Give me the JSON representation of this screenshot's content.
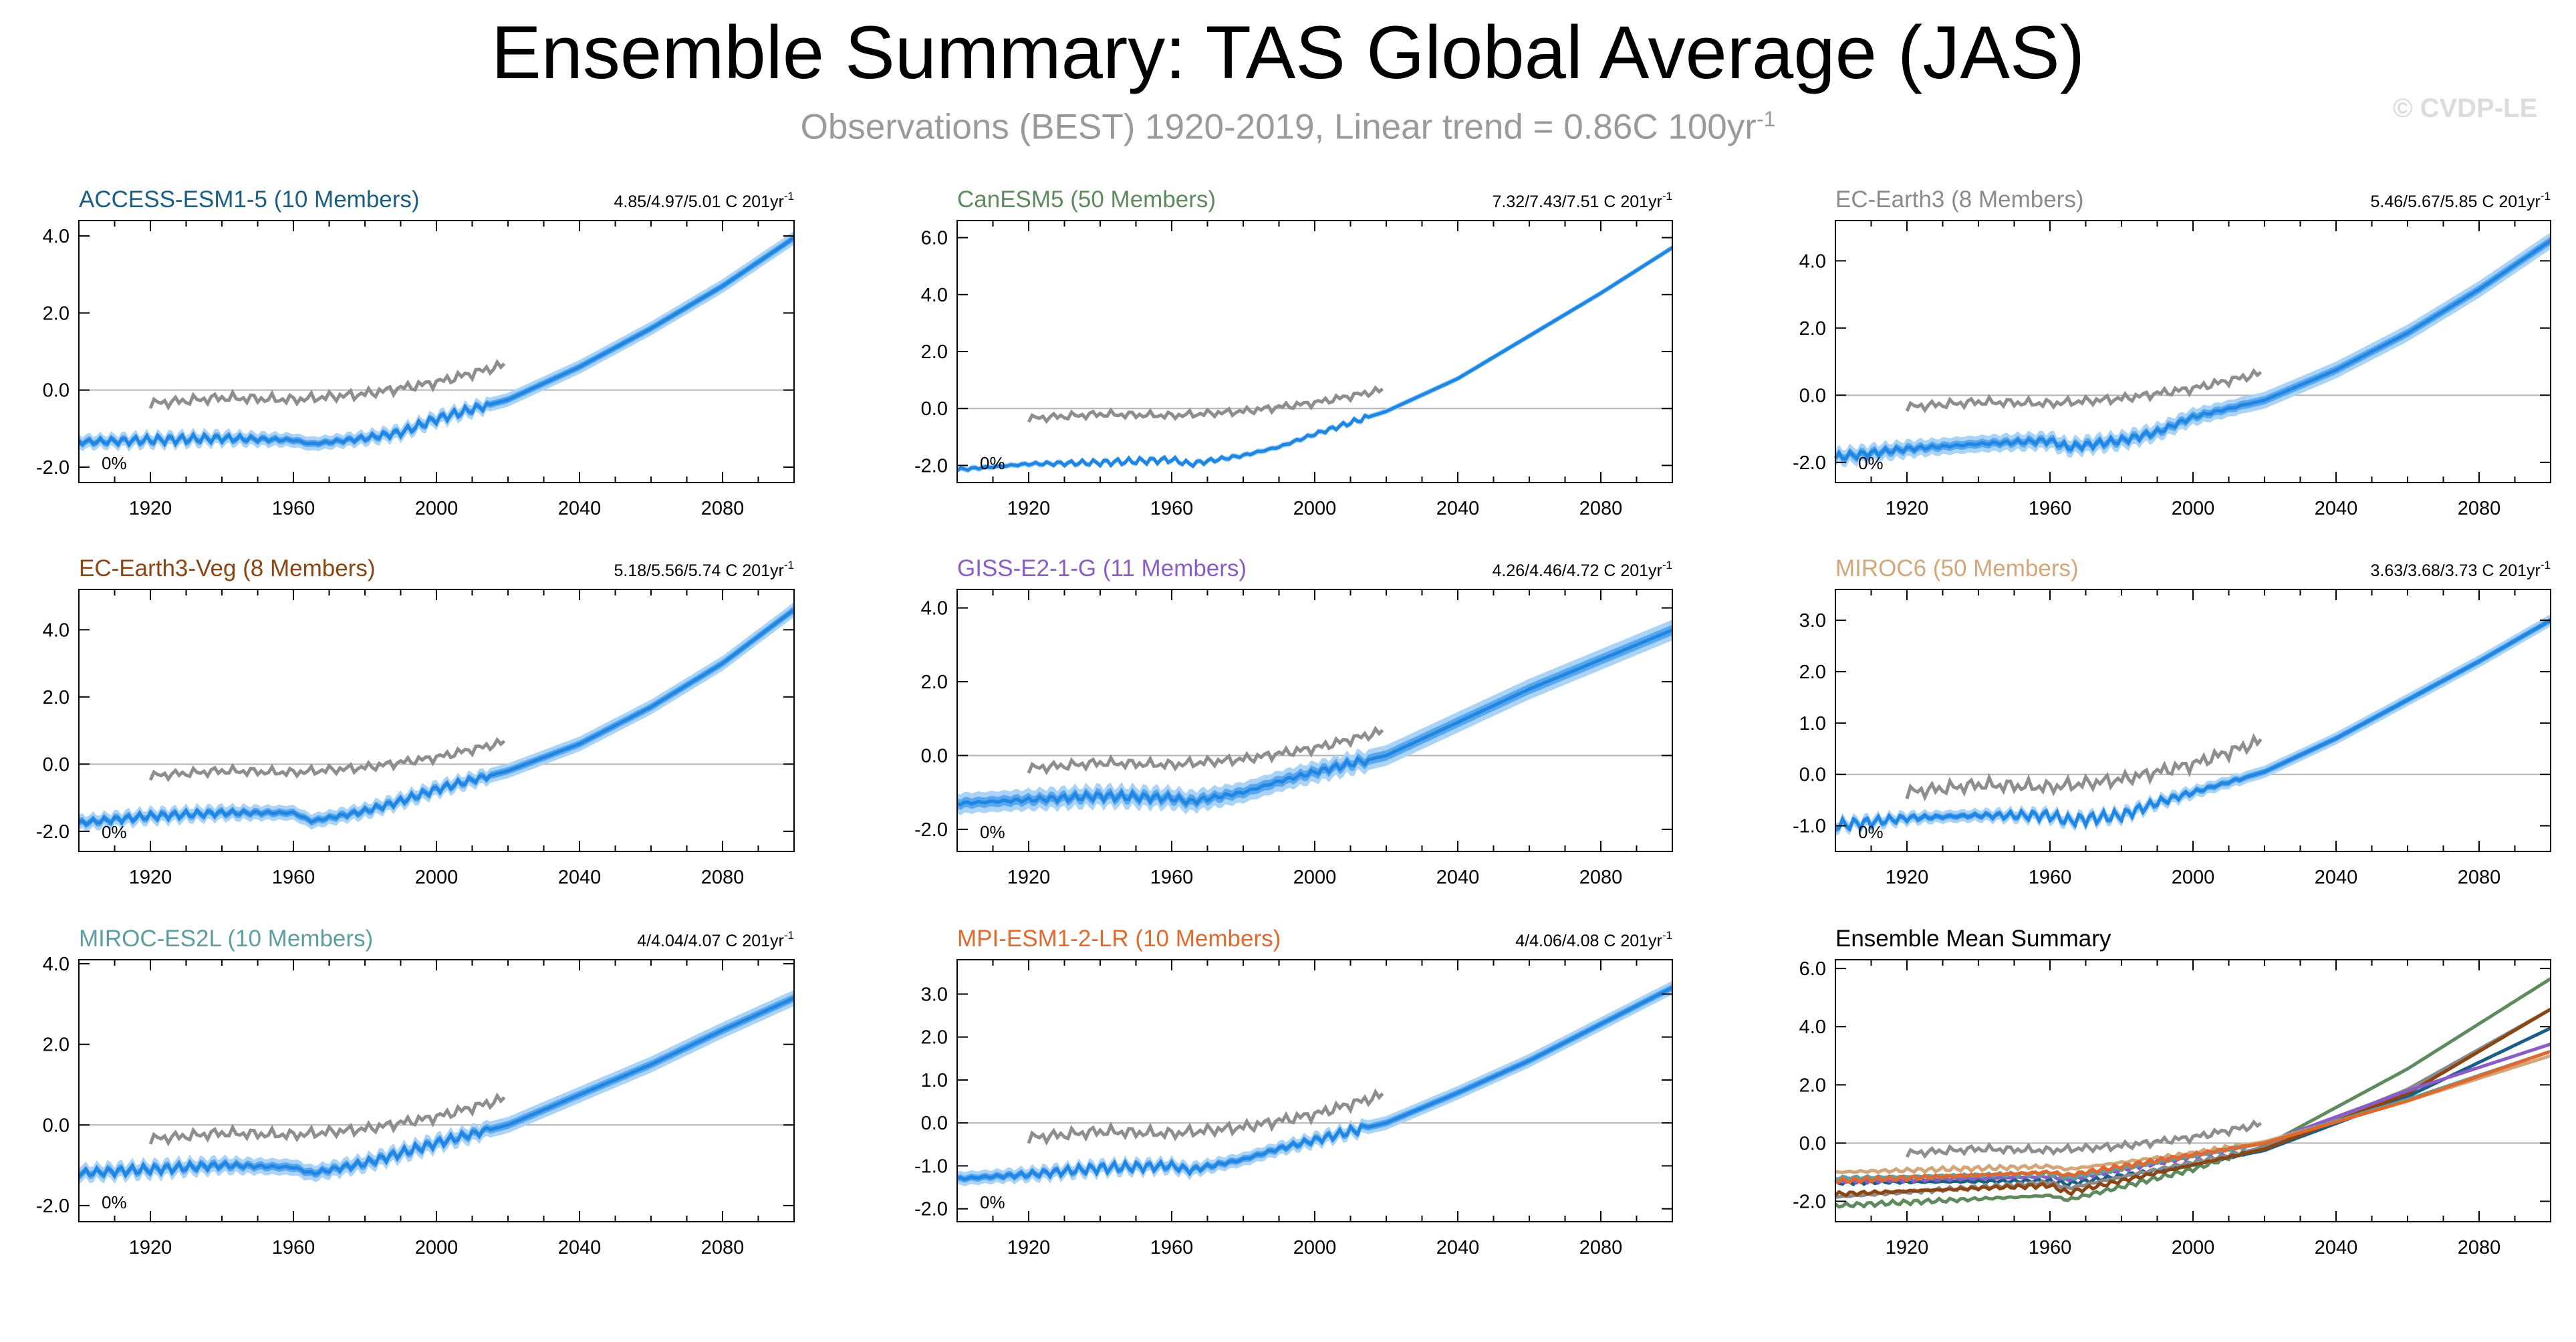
{
  "figure": {
    "title": "Ensemble Summary: TAS Global Average (JAS)",
    "subtitle_main": "Observations (BEST) 1920-2019, Linear trend = 0.86C 100yr",
    "subtitle_sup": "-1",
    "copyright": "© CVDP-LE"
  },
  "colors": {
    "ensemble_band_outer": "#a9d3f7",
    "ensemble_band_inner": "#5aa6ec",
    "ensemble_mean": "#1f86e3",
    "observations": "#8e8e8e",
    "zero_line": "#b3b3b3",
    "axis": "#000000"
  },
  "chart_data": [
    {
      "type": "line",
      "title": "ACCESS-ESM1-5 (10 Members)",
      "title_color": "#1a5e85",
      "stat": "4.85/4.97/5.01 C 201yr",
      "stat_sup": "-1",
      "annotation": "0%",
      "xlim": [
        1900,
        2100
      ],
      "ylim": [
        -2.4,
        4.4
      ],
      "xticks": [
        1920,
        1960,
        2000,
        2040,
        2080
      ],
      "yticks": [
        4.0,
        2.0,
        0.0,
        -2.0
      ],
      "yticklabels": [
        "4.0",
        "2.0",
        "0.0",
        "-2.0"
      ],
      "series": [
        {
          "role": "ensemble",
          "x": [
            1900,
            1920,
            1940,
            1960,
            1965,
            1980,
            1990,
            2000,
            2020,
            2040,
            2060,
            2080,
            2100
          ],
          "y": [
            -1.35,
            -1.3,
            -1.25,
            -1.3,
            -1.4,
            -1.25,
            -1.1,
            -0.75,
            -0.25,
            0.6,
            1.6,
            2.7,
            3.95
          ],
          "spread": 0.18
        },
        {
          "role": "observations",
          "x": [
            1920,
            1940,
            1960,
            1980,
            2000,
            2019
          ],
          "y": [
            -0.35,
            -0.2,
            -0.25,
            -0.1,
            0.2,
            0.65
          ]
        }
      ]
    },
    {
      "type": "line",
      "title": "CanESM5 (50 Members)",
      "title_color": "#5e8a5e",
      "stat": "7.32/7.43/7.51 C 201yr",
      "stat_sup": "-1",
      "annotation": "0%",
      "xlim": [
        1900,
        2100
      ],
      "ylim": [
        -2.6,
        6.6
      ],
      "xticks": [
        1920,
        1960,
        2000,
        2040,
        2080
      ],
      "yticks": [
        6.0,
        4.0,
        2.0,
        0.0,
        -2.0
      ],
      "yticklabels": [
        "6.0",
        "4.0",
        "2.0",
        "0.0",
        "-2.0"
      ],
      "series": [
        {
          "role": "ensemble",
          "x": [
            1900,
            1920,
            1940,
            1960,
            1965,
            1980,
            1990,
            2000,
            2020,
            2040,
            2060,
            2080,
            2100
          ],
          "y": [
            -2.15,
            -1.95,
            -1.9,
            -1.8,
            -1.95,
            -1.65,
            -1.35,
            -0.9,
            -0.1,
            1.05,
            2.55,
            4.05,
            5.65
          ],
          "spread": 0.1
        },
        {
          "role": "observations",
          "x": [
            1920,
            1940,
            1960,
            1980,
            2000,
            2019
          ],
          "y": [
            -0.35,
            -0.2,
            -0.25,
            -0.1,
            0.2,
            0.65
          ]
        }
      ]
    },
    {
      "type": "line",
      "title": "EC-Earth3 (8 Members)",
      "title_color": "#8a8a8a",
      "stat": "5.46/5.67/5.85 C 201yr",
      "stat_sup": "-1",
      "annotation": "0%",
      "xlim": [
        1900,
        2100
      ],
      "ylim": [
        -2.6,
        5.2
      ],
      "xticks": [
        1920,
        1960,
        2000,
        2040,
        2080
      ],
      "yticks": [
        4.0,
        2.0,
        0.0,
        -2.0
      ],
      "yticklabels": [
        "4.0",
        "2.0",
        "0.0",
        "-2.0"
      ],
      "series": [
        {
          "role": "ensemble",
          "x": [
            1900,
            1920,
            1940,
            1960,
            1965,
            1980,
            1990,
            2000,
            2020,
            2040,
            2060,
            2080,
            2100
          ],
          "y": [
            -1.85,
            -1.6,
            -1.45,
            -1.35,
            -1.55,
            -1.35,
            -1.1,
            -0.65,
            -0.15,
            0.75,
            1.85,
            3.15,
            4.6
          ],
          "spread": 0.25
        },
        {
          "role": "observations",
          "x": [
            1920,
            1940,
            1960,
            1980,
            2000,
            2019
          ],
          "y": [
            -0.35,
            -0.2,
            -0.25,
            -0.1,
            0.2,
            0.65
          ]
        }
      ]
    },
    {
      "type": "line",
      "title": "EC-Earth3-Veg (8 Members)",
      "title_color": "#8b4513",
      "stat": "5.18/5.56/5.74 C 201yr",
      "stat_sup": "-1",
      "annotation": "0%",
      "xlim": [
        1900,
        2100
      ],
      "ylim": [
        -2.6,
        5.2
      ],
      "xticks": [
        1920,
        1960,
        2000,
        2040,
        2080
      ],
      "yticks": [
        4.0,
        2.0,
        0.0,
        -2.0
      ],
      "yticklabels": [
        "4.0",
        "2.0",
        "0.0",
        "-2.0"
      ],
      "series": [
        {
          "role": "ensemble",
          "x": [
            1900,
            1920,
            1940,
            1960,
            1965,
            1980,
            1990,
            2000,
            2020,
            2040,
            2060,
            2080,
            2100
          ],
          "y": [
            -1.75,
            -1.55,
            -1.45,
            -1.45,
            -1.7,
            -1.4,
            -1.1,
            -0.75,
            -0.2,
            0.6,
            1.7,
            3.0,
            4.6
          ],
          "spread": 0.22
        },
        {
          "role": "observations",
          "x": [
            1920,
            1940,
            1960,
            1980,
            2000,
            2019
          ],
          "y": [
            -0.35,
            -0.2,
            -0.25,
            -0.1,
            0.2,
            0.65
          ]
        }
      ]
    },
    {
      "type": "line",
      "title": "GISS-E2-1-G (11 Members)",
      "title_color": "#8a5cc7",
      "stat": "4.26/4.46/4.72 C 201yr",
      "stat_sup": "-1",
      "annotation": "0%",
      "xlim": [
        1900,
        2100
      ],
      "ylim": [
        -2.6,
        4.5
      ],
      "xticks": [
        1920,
        1960,
        2000,
        2040,
        2080
      ],
      "yticks": [
        4.0,
        2.0,
        0.0,
        -2.0
      ],
      "yticklabels": [
        "4.0",
        "2.0",
        "0.0",
        "-2.0"
      ],
      "series": [
        {
          "role": "ensemble",
          "x": [
            1900,
            1920,
            1940,
            1960,
            1965,
            1980,
            1990,
            2000,
            2020,
            2040,
            2060,
            2080,
            2100
          ],
          "y": [
            -1.3,
            -1.2,
            -1.1,
            -1.15,
            -1.25,
            -1.0,
            -0.7,
            -0.45,
            0.0,
            0.9,
            1.8,
            2.6,
            3.4
          ],
          "spread": 0.28
        },
        {
          "role": "observations",
          "x": [
            1920,
            1940,
            1960,
            1980,
            2000,
            2019
          ],
          "y": [
            -0.35,
            -0.2,
            -0.25,
            -0.1,
            0.2,
            0.65
          ]
        }
      ]
    },
    {
      "type": "line",
      "title": "MIROC6 (50 Members)",
      "title_color": "#d2a679",
      "stat": "3.63/3.68/3.73 C 201yr",
      "stat_sup": "-1",
      "annotation": "0%",
      "xlim": [
        1900,
        2100
      ],
      "ylim": [
        -1.5,
        3.6
      ],
      "xticks": [
        1920,
        1960,
        2000,
        2040,
        2080
      ],
      "yticks": [
        3.0,
        2.0,
        1.0,
        0.0,
        -1.0
      ],
      "yticklabels": [
        "3.0",
        "2.0",
        "1.0",
        "0.0",
        "-1.0"
      ],
      "series": [
        {
          "role": "ensemble",
          "x": [
            1900,
            1920,
            1940,
            1960,
            1965,
            1980,
            1990,
            2000,
            2020,
            2040,
            2060,
            2080,
            2100
          ],
          "y": [
            -1.0,
            -0.85,
            -0.8,
            -0.8,
            -0.9,
            -0.8,
            -0.55,
            -0.35,
            0.05,
            0.7,
            1.45,
            2.2,
            3.0
          ],
          "spread": 0.12
        },
        {
          "role": "observations",
          "x": [
            1920,
            1940,
            1960,
            1980,
            2000,
            2019
          ],
          "y": [
            -0.35,
            -0.2,
            -0.25,
            -0.1,
            0.2,
            0.65
          ]
        }
      ]
    },
    {
      "type": "line",
      "title": "MIROC-ES2L (10 Members)",
      "title_color": "#5f9ea0",
      "stat": "4/4.04/4.07 C 201yr",
      "stat_sup": "-1",
      "annotation": "0%",
      "xlim": [
        1900,
        2100
      ],
      "ylim": [
        -2.4,
        4.1
      ],
      "xticks": [
        1920,
        1960,
        2000,
        2040,
        2080
      ],
      "yticks": [
        4.0,
        2.0,
        0.0,
        -2.0
      ],
      "yticklabels": [
        "4.0",
        "2.0",
        "0.0",
        "-2.0"
      ],
      "series": [
        {
          "role": "ensemble",
          "x": [
            1900,
            1920,
            1940,
            1960,
            1965,
            1980,
            1990,
            2000,
            2020,
            2040,
            2060,
            2080,
            2100
          ],
          "y": [
            -1.2,
            -1.1,
            -1.0,
            -1.05,
            -1.2,
            -0.95,
            -0.7,
            -0.45,
            0.0,
            0.75,
            1.5,
            2.35,
            3.15
          ],
          "spread": 0.2
        },
        {
          "role": "observations",
          "x": [
            1920,
            1940,
            1960,
            1980,
            2000,
            2019
          ],
          "y": [
            -0.35,
            -0.2,
            -0.25,
            -0.1,
            0.2,
            0.65
          ]
        }
      ]
    },
    {
      "type": "line",
      "title": "MPI-ESM1-2-LR (10 Members)",
      "title_color": "#e06a2e",
      "stat": "4/4.06/4.08 C 201yr",
      "stat_sup": "-1",
      "annotation": "0%",
      "xlim": [
        1900,
        2100
      ],
      "ylim": [
        -2.3,
        3.8
      ],
      "xticks": [
        1920,
        1960,
        2000,
        2040,
        2080
      ],
      "yticks": [
        3.0,
        2.0,
        1.0,
        0.0,
        -1.0,
        -2.0
      ],
      "yticklabels": [
        "3.0",
        "2.0",
        "1.0",
        "0.0",
        "-1.0",
        "-2.0"
      ],
      "series": [
        {
          "role": "ensemble",
          "x": [
            1900,
            1920,
            1940,
            1960,
            1965,
            1980,
            1990,
            2000,
            2020,
            2040,
            2060,
            2080,
            2100
          ],
          "y": [
            -1.3,
            -1.2,
            -1.05,
            -1.0,
            -1.1,
            -0.85,
            -0.6,
            -0.4,
            0.0,
            0.7,
            1.45,
            2.3,
            3.15
          ],
          "spread": 0.16
        },
        {
          "role": "observations",
          "x": [
            1920,
            1940,
            1960,
            1980,
            2000,
            2019
          ],
          "y": [
            -0.35,
            -0.2,
            -0.25,
            -0.1,
            0.2,
            0.65
          ]
        }
      ]
    },
    {
      "type": "line",
      "title": "Ensemble Mean Summary",
      "title_color": "#000000",
      "stat": "",
      "stat_sup": "",
      "annotation": "",
      "xlim": [
        1900,
        2100
      ],
      "ylim": [
        -2.7,
        6.3
      ],
      "xticks": [
        1920,
        1960,
        2000,
        2040,
        2080
      ],
      "yticks": [
        6.0,
        4.0,
        2.0,
        0.0,
        -2.0
      ],
      "yticklabels": [
        "6.0",
        "4.0",
        "2.0",
        "0.0",
        "-2.0"
      ],
      "series": [
        {
          "role": "mean",
          "color": "#1a5e85",
          "x": [
            1900,
            1960,
            1965,
            2000,
            2020,
            2060,
            2100
          ],
          "y": [
            -1.35,
            -1.3,
            -1.4,
            -0.75,
            -0.25,
            1.6,
            3.95
          ]
        },
        {
          "role": "mean",
          "color": "#5e8a5e",
          "x": [
            1900,
            1960,
            1965,
            2000,
            2020,
            2060,
            2100
          ],
          "y": [
            -2.15,
            -1.8,
            -1.95,
            -0.9,
            -0.1,
            2.55,
            5.65
          ]
        },
        {
          "role": "mean",
          "color": "#8a8a8a",
          "x": [
            1900,
            1960,
            1965,
            2000,
            2020,
            2060,
            2100
          ],
          "y": [
            -1.85,
            -1.35,
            -1.55,
            -0.65,
            -0.15,
            1.85,
            4.6
          ]
        },
        {
          "role": "mean",
          "color": "#8b4513",
          "x": [
            1900,
            1960,
            1965,
            2000,
            2020,
            2060,
            2100
          ],
          "y": [
            -1.75,
            -1.45,
            -1.7,
            -0.75,
            -0.2,
            1.7,
            4.6
          ]
        },
        {
          "role": "mean",
          "color": "#8a5cc7",
          "x": [
            1900,
            1960,
            1965,
            2000,
            2020,
            2060,
            2100
          ],
          "y": [
            -1.3,
            -1.15,
            -1.25,
            -0.45,
            0.0,
            1.8,
            3.4
          ]
        },
        {
          "role": "mean",
          "color": "#d2a679",
          "x": [
            1900,
            1960,
            1965,
            2000,
            2020,
            2060,
            2100
          ],
          "y": [
            -1.0,
            -0.8,
            -0.9,
            -0.35,
            0.05,
            1.45,
            3.0
          ]
        },
        {
          "role": "mean",
          "color": "#5f9ea0",
          "x": [
            1900,
            1960,
            1965,
            2000,
            2020,
            2060,
            2100
          ],
          "y": [
            -1.2,
            -1.05,
            -1.2,
            -0.45,
            0.0,
            1.5,
            3.15
          ]
        },
        {
          "role": "mean",
          "color": "#e06a2e",
          "x": [
            1900,
            1960,
            1965,
            2000,
            2020,
            2060,
            2100
          ],
          "y": [
            -1.3,
            -1.0,
            -1.1,
            -0.4,
            0.0,
            1.45,
            3.15
          ]
        },
        {
          "role": "observations",
          "x": [
            1920,
            1940,
            1960,
            1980,
            2000,
            2019
          ],
          "y": [
            -0.35,
            -0.2,
            -0.25,
            -0.1,
            0.2,
            0.65
          ]
        }
      ]
    }
  ]
}
